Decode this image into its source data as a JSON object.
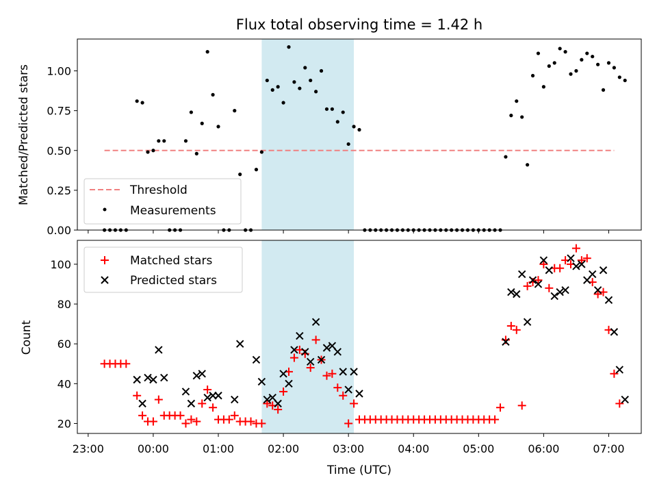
{
  "chart_data": [
    {
      "type": "scatter",
      "title": "Flux total observing time = 1.42 h",
      "xlabel": "",
      "ylabel": "Matched/Predicted stars",
      "xlim": [
        "22:50",
        "07:30"
      ],
      "ylim": [
        0,
        1.2
      ],
      "yticks": [
        "0.00",
        "0.25",
        "0.50",
        "0.75",
        "1.00"
      ],
      "shaded_region": {
        "x_start": "01:40",
        "x_end": "03:05",
        "color": "#add8e6"
      },
      "legend_position": "lower-left",
      "series": [
        {
          "name": "Threshold",
          "style": "dashed-line",
          "color": "#f08080",
          "points": [
            [
              "23:15",
              0.5
            ],
            [
              "07:05",
              0.5
            ]
          ]
        },
        {
          "name": "Measurements",
          "style": "dot",
          "color": "#000000",
          "points": [
            [
              "23:15",
              0
            ],
            [
              "23:20",
              0
            ],
            [
              "23:25",
              0
            ],
            [
              "23:30",
              0
            ],
            [
              "23:35",
              0
            ],
            [
              "23:45",
              0.81
            ],
            [
              "23:50",
              0.8
            ],
            [
              "23:55",
              0.49
            ],
            [
              "00:00",
              0.5
            ],
            [
              "00:05",
              0.56
            ],
            [
              "00:10",
              0.56
            ],
            [
              "00:15",
              0
            ],
            [
              "00:20",
              0
            ],
            [
              "00:25",
              0
            ],
            [
              "00:30",
              0.56
            ],
            [
              "00:35",
              0.74
            ],
            [
              "00:40",
              0.48
            ],
            [
              "00:45",
              0.67
            ],
            [
              "00:50",
              1.12
            ],
            [
              "00:55",
              0.85
            ],
            [
              "01:00",
              0.65
            ],
            [
              "01:05",
              0
            ],
            [
              "01:10",
              0
            ],
            [
              "01:15",
              0.75
            ],
            [
              "01:20",
              0.35
            ],
            [
              "01:25",
              0
            ],
            [
              "01:30",
              0
            ],
            [
              "01:35",
              0.38
            ],
            [
              "01:40",
              0.49
            ],
            [
              "01:45",
              0.94
            ],
            [
              "01:50",
              0.88
            ],
            [
              "01:55",
              0.9
            ],
            [
              "02:00",
              0.8
            ],
            [
              "02:05",
              1.15
            ],
            [
              "02:10",
              0.93
            ],
            [
              "02:15",
              0.89
            ],
            [
              "02:20",
              1.02
            ],
            [
              "02:25",
              0.94
            ],
            [
              "02:30",
              0.87
            ],
            [
              "02:35",
              1.0
            ],
            [
              "02:40",
              0.76
            ],
            [
              "02:45",
              0.76
            ],
            [
              "02:50",
              0.68
            ],
            [
              "02:55",
              0.74
            ],
            [
              "03:00",
              0.54
            ],
            [
              "03:05",
              0.65
            ],
            [
              "03:10",
              0.63
            ],
            [
              "03:15",
              0
            ],
            [
              "03:20",
              0
            ],
            [
              "03:25",
              0
            ],
            [
              "03:30",
              0
            ],
            [
              "03:35",
              0
            ],
            [
              "03:40",
              0
            ],
            [
              "03:45",
              0
            ],
            [
              "03:50",
              0
            ],
            [
              "03:55",
              0
            ],
            [
              "04:00",
              0
            ],
            [
              "04:05",
              0
            ],
            [
              "04:10",
              0
            ],
            [
              "04:15",
              0
            ],
            [
              "04:20",
              0
            ],
            [
              "04:25",
              0
            ],
            [
              "04:30",
              0
            ],
            [
              "04:35",
              0
            ],
            [
              "04:40",
              0
            ],
            [
              "04:45",
              0
            ],
            [
              "04:50",
              0
            ],
            [
              "04:55",
              0
            ],
            [
              "05:00",
              0
            ],
            [
              "05:05",
              0
            ],
            [
              "05:10",
              0
            ],
            [
              "05:15",
              0
            ],
            [
              "05:20",
              0
            ],
            [
              "05:25",
              0.46
            ],
            [
              "05:30",
              0.72
            ],
            [
              "05:35",
              0.81
            ],
            [
              "05:40",
              0.71
            ],
            [
              "05:45",
              0.41
            ],
            [
              "05:50",
              0.97
            ],
            [
              "05:55",
              1.11
            ],
            [
              "06:00",
              0.9
            ],
            [
              "06:05",
              1.03
            ],
            [
              "06:10",
              1.05
            ],
            [
              "06:15",
              1.14
            ],
            [
              "06:20",
              1.12
            ],
            [
              "06:25",
              0.98
            ],
            [
              "06:30",
              1.0
            ],
            [
              "06:35",
              1.07
            ],
            [
              "06:40",
              1.11
            ],
            [
              "06:45",
              1.09
            ],
            [
              "06:50",
              1.04
            ],
            [
              "06:55",
              0.88
            ],
            [
              "07:00",
              1.05
            ],
            [
              "07:05",
              1.02
            ],
            [
              "07:10",
              0.96
            ],
            [
              "07:15",
              0.94
            ]
          ]
        }
      ]
    },
    {
      "type": "scatter",
      "title": "",
      "xlabel": "Time (UTC)",
      "ylabel": "Count",
      "xlim": [
        "22:50",
        "07:30"
      ],
      "ylim": [
        15,
        112
      ],
      "xticks": [
        "23:00",
        "00:00",
        "01:00",
        "02:00",
        "03:00",
        "04:00",
        "05:00",
        "06:00",
        "07:00"
      ],
      "yticks": [
        "20",
        "40",
        "60",
        "80",
        "100"
      ],
      "shaded_region": {
        "x_start": "01:40",
        "x_end": "03:05",
        "color": "#add8e6"
      },
      "legend_position": "top-left",
      "series": [
        {
          "name": "Matched stars",
          "marker": "plus",
          "color": "#ff0000",
          "points": [
            [
              "23:15",
              50
            ],
            [
              "23:20",
              50
            ],
            [
              "23:25",
              50
            ],
            [
              "23:30",
              50
            ],
            [
              "23:35",
              50
            ],
            [
              "23:45",
              34
            ],
            [
              "23:50",
              24
            ],
            [
              "23:55",
              21
            ],
            [
              "00:00",
              21
            ],
            [
              "00:05",
              32
            ],
            [
              "00:10",
              24
            ],
            [
              "00:15",
              24
            ],
            [
              "00:20",
              24
            ],
            [
              "00:25",
              24
            ],
            [
              "00:30",
              20
            ],
            [
              "00:35",
              22
            ],
            [
              "00:40",
              21
            ],
            [
              "00:45",
              30
            ],
            [
              "00:50",
              37
            ],
            [
              "00:55",
              28
            ],
            [
              "01:00",
              22
            ],
            [
              "01:05",
              22
            ],
            [
              "01:10",
              22
            ],
            [
              "01:15",
              24
            ],
            [
              "01:20",
              21
            ],
            [
              "01:25",
              21
            ],
            [
              "01:30",
              21
            ],
            [
              "01:35",
              20
            ],
            [
              "01:40",
              20
            ],
            [
              "01:45",
              30
            ],
            [
              "01:50",
              29
            ],
            [
              "01:55",
              27
            ],
            [
              "02:00",
              36
            ],
            [
              "02:05",
              46
            ],
            [
              "02:10",
              53
            ],
            [
              "02:15",
              57
            ],
            [
              "02:20",
              55
            ],
            [
              "02:25",
              48
            ],
            [
              "02:30",
              62
            ],
            [
              "02:35",
              52
            ],
            [
              "02:40",
              44
            ],
            [
              "02:45",
              45
            ],
            [
              "02:50",
              38
            ],
            [
              "02:55",
              34
            ],
            [
              "03:00",
              20
            ],
            [
              "03:05",
              30
            ],
            [
              "03:10",
              22
            ],
            [
              "03:15",
              22
            ],
            [
              "03:20",
              22
            ],
            [
              "03:25",
              22
            ],
            [
              "03:30",
              22
            ],
            [
              "03:35",
              22
            ],
            [
              "03:40",
              22
            ],
            [
              "03:45",
              22
            ],
            [
              "03:50",
              22
            ],
            [
              "03:55",
              22
            ],
            [
              "04:00",
              22
            ],
            [
              "04:05",
              22
            ],
            [
              "04:10",
              22
            ],
            [
              "04:15",
              22
            ],
            [
              "04:20",
              22
            ],
            [
              "04:25",
              22
            ],
            [
              "04:30",
              22
            ],
            [
              "04:35",
              22
            ],
            [
              "04:40",
              22
            ],
            [
              "04:45",
              22
            ],
            [
              "04:50",
              22
            ],
            [
              "04:55",
              22
            ],
            [
              "05:00",
              22
            ],
            [
              "05:05",
              22
            ],
            [
              "05:10",
              22
            ],
            [
              "05:15",
              22
            ],
            [
              "05:20",
              28
            ],
            [
              "05:25",
              62
            ],
            [
              "05:30",
              69
            ],
            [
              "05:35",
              67
            ],
            [
              "05:40",
              29
            ],
            [
              "05:45",
              89
            ],
            [
              "05:50",
              91
            ],
            [
              "05:55",
              92
            ],
            [
              "06:00",
              100
            ],
            [
              "06:05",
              88
            ],
            [
              "06:10",
              98
            ],
            [
              "06:15",
              98
            ],
            [
              "06:20",
              102
            ],
            [
              "06:25",
              100
            ],
            [
              "06:30",
              108
            ],
            [
              "06:35",
              102
            ],
            [
              "06:40",
              103
            ],
            [
              "06:45",
              91
            ],
            [
              "06:50",
              85
            ],
            [
              "06:55",
              86
            ],
            [
              "07:00",
              67
            ],
            [
              "07:05",
              45
            ],
            [
              "07:10",
              30
            ]
          ]
        },
        {
          "name": "Predicted stars",
          "marker": "x",
          "color": "#000000",
          "points": [
            [
              "23:45",
              42
            ],
            [
              "23:50",
              30
            ],
            [
              "23:55",
              43
            ],
            [
              "00:00",
              42
            ],
            [
              "00:05",
              57
            ],
            [
              "00:10",
              43
            ],
            [
              "00:30",
              36
            ],
            [
              "00:35",
              30
            ],
            [
              "00:40",
              44
            ],
            [
              "00:45",
              45
            ],
            [
              "00:50",
              33
            ],
            [
              "00:55",
              34
            ],
            [
              "01:00",
              34
            ],
            [
              "01:15",
              32
            ],
            [
              "01:20",
              60
            ],
            [
              "01:35",
              52
            ],
            [
              "01:40",
              41
            ],
            [
              "01:45",
              32
            ],
            [
              "01:50",
              33
            ],
            [
              "01:55",
              30
            ],
            [
              "02:00",
              45
            ],
            [
              "02:05",
              40
            ],
            [
              "02:10",
              57
            ],
            [
              "02:15",
              64
            ],
            [
              "02:20",
              56
            ],
            [
              "02:25",
              51
            ],
            [
              "02:30",
              71
            ],
            [
              "02:35",
              52
            ],
            [
              "02:40",
              58
            ],
            [
              "02:45",
              59
            ],
            [
              "02:50",
              56
            ],
            [
              "02:55",
              46
            ],
            [
              "03:00",
              37
            ],
            [
              "03:05",
              46
            ],
            [
              "03:10",
              35
            ],
            [
              "05:25",
              61
            ],
            [
              "05:30",
              86
            ],
            [
              "05:35",
              85
            ],
            [
              "05:40",
              95
            ],
            [
              "05:45",
              71
            ],
            [
              "05:50",
              92
            ],
            [
              "05:55",
              90
            ],
            [
              "06:00",
              102
            ],
            [
              "06:05",
              97
            ],
            [
              "06:10",
              84
            ],
            [
              "06:15",
              86
            ],
            [
              "06:20",
              87
            ],
            [
              "06:25",
              103
            ],
            [
              "06:30",
              99
            ],
            [
              "06:35",
              100
            ],
            [
              "06:40",
              92
            ],
            [
              "06:45",
              95
            ],
            [
              "06:50",
              87
            ],
            [
              "06:55",
              97
            ],
            [
              "07:00",
              82
            ],
            [
              "07:05",
              66
            ],
            [
              "07:10",
              47
            ],
            [
              "07:15",
              32
            ]
          ]
        }
      ]
    }
  ]
}
